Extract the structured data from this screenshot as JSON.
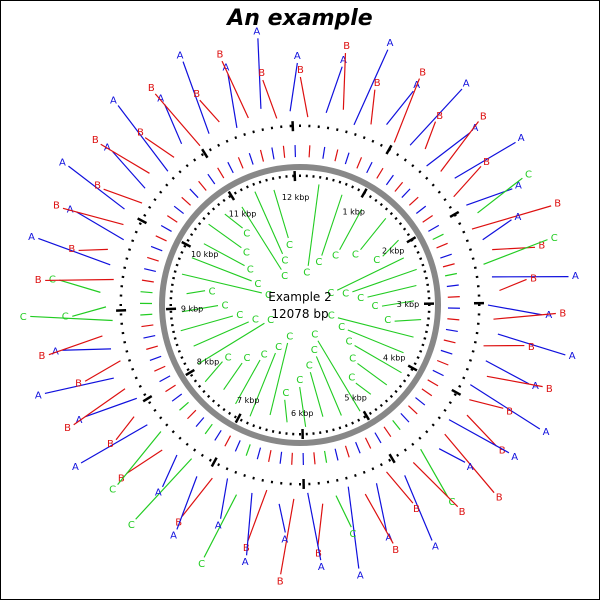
{
  "title": "An example",
  "center": {
    "line1": "Example 2",
    "line2": "12078 bp"
  },
  "colors": {
    "A": "#1010dd",
    "B": "#dd1010",
    "C": "#22cc22",
    "backbone": "#888888",
    "ticks": "#000000"
  },
  "sequence_length": 12078,
  "tick_labels": [
    "1 kbp",
    "2 kbp",
    "3 kbp",
    "4 kbp",
    "5 kbp",
    "6 kbp",
    "7 kbp",
    "8 kbp",
    "9 kbp",
    "10 kbp",
    "11 kbp",
    "12 kbp"
  ],
  "outer_features": [
    {
      "pos": 80,
      "type": "B"
    },
    {
      "pos": 260,
      "type": "A"
    },
    {
      "pos": 420,
      "type": "B"
    },
    {
      "pos": 560,
      "type": "A"
    },
    {
      "pos": 720,
      "type": "B"
    },
    {
      "pos": 860,
      "type": "A"
    },
    {
      "pos": 1010,
      "type": "B"
    },
    {
      "pos": 1160,
      "type": "A"
    },
    {
      "pos": 1300,
      "type": "B"
    },
    {
      "pos": 1420,
      "type": "A"
    },
    {
      "pos": 1560,
      "type": "B"
    },
    {
      "pos": 1700,
      "type": "A"
    },
    {
      "pos": 1840,
      "type": "B"
    },
    {
      "pos": 1980,
      "type": "A"
    },
    {
      "pos": 2100,
      "type": "C"
    },
    {
      "pos": 2220,
      "type": "B"
    },
    {
      "pos": 2360,
      "type": "A"
    },
    {
      "pos": 2480,
      "type": "B"
    },
    {
      "pos": 2600,
      "type": "C"
    },
    {
      "pos": 2740,
      "type": "A"
    },
    {
      "pos": 2880,
      "type": "B"
    },
    {
      "pos": 3020,
      "type": "A"
    },
    {
      "pos": 3160,
      "type": "B"
    },
    {
      "pos": 3300,
      "type": "A"
    },
    {
      "pos": 3440,
      "type": "B"
    },
    {
      "pos": 3580,
      "type": "A"
    },
    {
      "pos": 3720,
      "type": "B"
    },
    {
      "pos": 3860,
      "type": "A"
    },
    {
      "pos": 4000,
      "type": "B"
    },
    {
      "pos": 4140,
      "type": "B"
    },
    {
      "pos": 4280,
      "type": "A"
    },
    {
      "pos": 4420,
      "type": "B"
    },
    {
      "pos": 4560,
      "type": "A"
    },
    {
      "pos": 4700,
      "type": "C"
    },
    {
      "pos": 4840,
      "type": "B"
    },
    {
      "pos": 4980,
      "type": "A"
    },
    {
      "pos": 5120,
      "type": "B"
    },
    {
      "pos": 5260,
      "type": "A"
    },
    {
      "pos": 5400,
      "type": "B"
    },
    {
      "pos": 5540,
      "type": "A"
    },
    {
      "pos": 5680,
      "type": "C"
    },
    {
      "pos": 5820,
      "type": "B"
    },
    {
      "pos": 5960,
      "type": "A"
    },
    {
      "pos": 6100,
      "type": "B"
    },
    {
      "pos": 6240,
      "type": "A"
    },
    {
      "pos": 6380,
      "type": "B"
    },
    {
      "pos": 6520,
      "type": "A"
    },
    {
      "pos": 6660,
      "type": "C"
    },
    {
      "pos": 6800,
      "type": "A"
    },
    {
      "pos": 6940,
      "type": "B"
    },
    {
      "pos": 7080,
      "type": "A"
    },
    {
      "pos": 7220,
      "type": "C"
    },
    {
      "pos": 7360,
      "type": "A"
    },
    {
      "pos": 7500,
      "type": "B"
    },
    {
      "pos": 7640,
      "type": "C"
    },
    {
      "pos": 7780,
      "type": "A"
    },
    {
      "pos": 7920,
      "type": "B"
    },
    {
      "pos": 8060,
      "type": "A"
    },
    {
      "pos": 8200,
      "type": "B"
    },
    {
      "pos": 8340,
      "type": "A"
    },
    {
      "pos": 8480,
      "type": "B"
    },
    {
      "pos": 8620,
      "type": "A"
    },
    {
      "pos": 8760,
      "type": "B"
    },
    {
      "pos": 8900,
      "type": "C"
    },
    {
      "pos": 9040,
      "type": "C"
    },
    {
      "pos": 9180,
      "type": "C"
    },
    {
      "pos": 9320,
      "type": "B"
    },
    {
      "pos": 9460,
      "type": "A"
    },
    {
      "pos": 9600,
      "type": "B"
    },
    {
      "pos": 9740,
      "type": "A"
    },
    {
      "pos": 9880,
      "type": "B"
    },
    {
      "pos": 10020,
      "type": "A"
    },
    {
      "pos": 10160,
      "type": "B"
    },
    {
      "pos": 10300,
      "type": "A"
    },
    {
      "pos": 10440,
      "type": "B"
    },
    {
      "pos": 10580,
      "type": "A"
    },
    {
      "pos": 10720,
      "type": "B"
    },
    {
      "pos": 10860,
      "type": "A"
    },
    {
      "pos": 11000,
      "type": "B"
    },
    {
      "pos": 11140,
      "type": "A"
    },
    {
      "pos": 11280,
      "type": "B"
    },
    {
      "pos": 11420,
      "type": "A"
    },
    {
      "pos": 11560,
      "type": "B"
    },
    {
      "pos": 11700,
      "type": "A"
    },
    {
      "pos": 11840,
      "type": "B"
    },
    {
      "pos": 11980,
      "type": "A"
    }
  ],
  "inner_features": [
    {
      "pos": 300
    },
    {
      "pos": 700
    },
    {
      "pos": 1100
    },
    {
      "pos": 1500
    },
    {
      "pos": 1900
    },
    {
      "pos": 2200
    },
    {
      "pos": 2450
    },
    {
      "pos": 2700
    },
    {
      "pos": 2950
    },
    {
      "pos": 3250
    },
    {
      "pos": 3550
    },
    {
      "pos": 3850
    },
    {
      "pos": 4150
    },
    {
      "pos": 4450
    },
    {
      "pos": 4750
    },
    {
      "pos": 5050
    },
    {
      "pos": 5350
    },
    {
      "pos": 5650
    },
    {
      "pos": 5950
    },
    {
      "pos": 6250
    },
    {
      "pos": 6550
    },
    {
      "pos": 6850
    },
    {
      "pos": 7150
    },
    {
      "pos": 7450
    },
    {
      "pos": 7750
    },
    {
      "pos": 8050
    },
    {
      "pos": 8350
    },
    {
      "pos": 8650
    },
    {
      "pos": 8950
    },
    {
      "pos": 9250
    },
    {
      "pos": 9550
    },
    {
      "pos": 9850
    },
    {
      "pos": 10150
    },
    {
      "pos": 10450
    },
    {
      "pos": 10750
    },
    {
      "pos": 11050
    },
    {
      "pos": 11350
    },
    {
      "pos": 11650
    }
  ]
}
